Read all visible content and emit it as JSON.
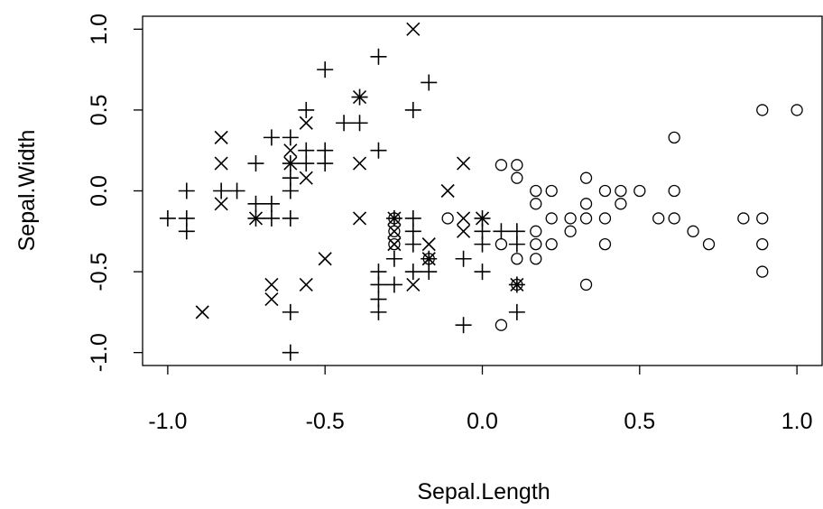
{
  "chart_data": {
    "type": "scatter",
    "xlabel": "Sepal.Length",
    "ylabel": "Sepal.Width",
    "xlim": [
      -1.08,
      1.08
    ],
    "ylim": [
      -1.08,
      1.08
    ],
    "xticks": [
      -1.0,
      -0.5,
      0.0,
      0.5,
      1.0
    ],
    "yticks": [
      -1.0,
      -0.5,
      0.0,
      0.5,
      1.0
    ],
    "xtick_labels": [
      "-1.0",
      "-0.5",
      "0.0",
      "0.5",
      "1.0"
    ],
    "ytick_labels": [
      "-1.0",
      "-0.5",
      "0.0",
      "0.5",
      "1.0"
    ],
    "grid": false,
    "series": [
      {
        "marker": "circle",
        "points": [
          [
            0.06,
            0.16
          ],
          [
            0.11,
            0.16
          ],
          [
            0.11,
            0.08
          ],
          [
            0.17,
            0.0
          ],
          [
            0.22,
            0.0
          ],
          [
            0.33,
            0.08
          ],
          [
            0.33,
            -0.08
          ],
          [
            0.39,
            0.0
          ],
          [
            0.44,
            0.0
          ],
          [
            0.44,
            -0.08
          ],
          [
            0.5,
            0.0
          ],
          [
            0.61,
            0.33
          ],
          [
            0.61,
            0.0
          ],
          [
            0.61,
            -0.17
          ],
          [
            0.56,
            -0.17
          ],
          [
            0.89,
            0.5
          ],
          [
            1.0,
            0.5
          ],
          [
            0.89,
            -0.17
          ],
          [
            0.89,
            -0.33
          ],
          [
            0.89,
            -0.5
          ],
          [
            0.83,
            -0.17
          ],
          [
            0.72,
            -0.33
          ],
          [
            0.67,
            -0.25
          ],
          [
            0.39,
            -0.17
          ],
          [
            0.39,
            -0.33
          ],
          [
            0.33,
            -0.17
          ],
          [
            0.28,
            -0.17
          ],
          [
            0.28,
            -0.25
          ],
          [
            0.22,
            -0.17
          ],
          [
            0.22,
            -0.33
          ],
          [
            0.17,
            -0.08
          ],
          [
            0.17,
            -0.25
          ],
          [
            0.17,
            -0.33
          ],
          [
            0.17,
            -0.42
          ],
          [
            0.11,
            -0.42
          ],
          [
            0.06,
            -0.33
          ],
          [
            0.11,
            -0.58
          ],
          [
            0.06,
            -0.83
          ],
          [
            0.33,
            -0.58
          ],
          [
            -0.28,
            -0.17
          ],
          [
            -0.28,
            -0.25
          ],
          [
            -0.28,
            -0.33
          ],
          [
            -0.17,
            -0.42
          ],
          [
            -0.11,
            -0.17
          ]
        ]
      },
      {
        "marker": "plus",
        "points": [
          [
            -0.33,
            0.83
          ],
          [
            -0.5,
            0.75
          ],
          [
            -0.17,
            0.67
          ],
          [
            -0.56,
            0.5
          ],
          [
            -0.22,
            0.5
          ],
          [
            -0.39,
            0.58
          ],
          [
            -0.44,
            0.42
          ],
          [
            -0.39,
            0.42
          ],
          [
            -0.61,
            0.33
          ],
          [
            -0.67,
            0.33
          ],
          [
            -0.56,
            0.25
          ],
          [
            -0.5,
            0.25
          ],
          [
            -0.33,
            0.25
          ],
          [
            -0.61,
            0.17
          ],
          [
            -0.5,
            0.17
          ],
          [
            -0.56,
            0.17
          ],
          [
            -0.72,
            0.17
          ],
          [
            -0.61,
            0.08
          ],
          [
            -0.61,
            0.0
          ],
          [
            -0.78,
            0.0
          ],
          [
            -0.94,
            0.0
          ],
          [
            -0.83,
            0.0
          ],
          [
            -1.0,
            -0.17
          ],
          [
            -0.94,
            -0.17
          ],
          [
            -0.94,
            -0.25
          ],
          [
            -0.72,
            -0.08
          ],
          [
            -0.72,
            -0.17
          ],
          [
            -0.67,
            -0.08
          ],
          [
            -0.67,
            -0.17
          ],
          [
            -0.61,
            -0.17
          ],
          [
            -0.28,
            -0.17
          ],
          [
            -0.22,
            -0.17
          ],
          [
            -0.22,
            -0.25
          ],
          [
            -0.22,
            -0.33
          ],
          [
            -0.28,
            -0.42
          ],
          [
            -0.17,
            -0.5
          ],
          [
            -0.22,
            -0.5
          ],
          [
            -0.33,
            -0.5
          ],
          [
            -0.33,
            -0.58
          ],
          [
            -0.33,
            -0.67
          ],
          [
            -0.33,
            -0.75
          ],
          [
            -0.28,
            -0.58
          ],
          [
            -0.17,
            -0.42
          ],
          [
            0.0,
            -0.17
          ],
          [
            0.0,
            -0.25
          ],
          [
            0.0,
            -0.33
          ],
          [
            0.0,
            -0.5
          ],
          [
            -0.06,
            -0.42
          ],
          [
            0.06,
            -0.25
          ],
          [
            0.11,
            -0.25
          ],
          [
            0.11,
            -0.33
          ],
          [
            0.11,
            -0.58
          ],
          [
            0.11,
            -0.75
          ],
          [
            -0.06,
            -0.83
          ],
          [
            -0.61,
            -0.75
          ],
          [
            -0.61,
            -1.0
          ]
        ]
      },
      {
        "marker": "cross",
        "points": [
          [
            -0.22,
            1.0
          ],
          [
            -0.39,
            0.58
          ],
          [
            -0.56,
            0.42
          ],
          [
            -0.83,
            0.33
          ],
          [
            -0.83,
            0.17
          ],
          [
            -0.61,
            0.25
          ],
          [
            -0.61,
            0.17
          ],
          [
            -0.56,
            0.08
          ],
          [
            -0.39,
            0.17
          ],
          [
            -0.83,
            -0.08
          ],
          [
            -0.72,
            -0.17
          ],
          [
            -0.39,
            -0.17
          ],
          [
            -0.28,
            -0.17
          ],
          [
            -0.28,
            -0.25
          ],
          [
            -0.28,
            -0.33
          ],
          [
            -0.17,
            -0.33
          ],
          [
            -0.17,
            -0.42
          ],
          [
            -0.22,
            -0.58
          ],
          [
            -0.5,
            -0.42
          ],
          [
            -0.56,
            -0.58
          ],
          [
            -0.67,
            -0.58
          ],
          [
            -0.67,
            -0.67
          ],
          [
            -0.89,
            -0.75
          ],
          [
            -0.06,
            0.17
          ],
          [
            -0.11,
            0.0
          ],
          [
            -0.06,
            -0.17
          ],
          [
            -0.06,
            -0.25
          ],
          [
            0.0,
            -0.17
          ],
          [
            0.11,
            -0.58
          ]
        ]
      }
    ]
  }
}
